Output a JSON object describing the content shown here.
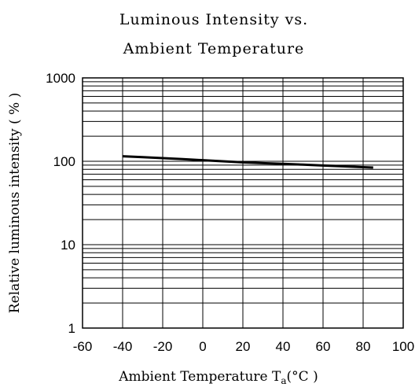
{
  "chart_data": {
    "type": "line",
    "title_lines": [
      "Luminous Intensity vs.",
      "Ambient Temperature"
    ],
    "xlabel": "Ambient Temperature ",
    "xlabel_symbol": "T",
    "xlabel_subscript": "a",
    "xlabel_unit": "(°C )",
    "ylabel": "Relative luminous intensity ( % )",
    "x_scale": "linear",
    "y_scale": "log",
    "xlim": [
      -60,
      100
    ],
    "ylim": [
      1,
      1000
    ],
    "x_ticks": [
      -60,
      -40,
      -20,
      0,
      20,
      40,
      60,
      80,
      100
    ],
    "x_tick_labels": [
      "-60",
      "-40",
      "-20",
      "0",
      "20",
      "40",
      "60",
      "80",
      "100"
    ],
    "y_ticks": [
      1,
      10,
      100,
      1000
    ],
    "y_tick_labels": [
      "1",
      "10",
      "100",
      "1000"
    ],
    "grid": true,
    "series": [
      {
        "x": [
          -40,
          -30,
          -20,
          -10,
          0,
          10,
          20,
          30,
          40,
          50,
          60,
          70,
          80,
          85
        ],
        "y": [
          115,
          112,
          109,
          106,
          103,
          100,
          97,
          95,
          93,
          91,
          89,
          87,
          85,
          84
        ]
      }
    ]
  }
}
